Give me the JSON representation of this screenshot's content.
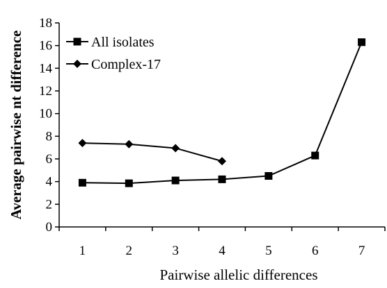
{
  "chart_data": {
    "type": "line",
    "title": "",
    "xlabel": "Pairwise allelic differences",
    "ylabel": "Average pairwise nt difference",
    "x": [
      1,
      2,
      3,
      4,
      5,
      6,
      7
    ],
    "xlim": [
      0.5,
      7.5
    ],
    "ylim": [
      0,
      18
    ],
    "yticks": [
      0,
      2,
      4,
      6,
      8,
      10,
      12,
      14,
      16,
      18
    ],
    "grid": false,
    "legend_position": "top-left",
    "series": [
      {
        "name": "All isolates",
        "marker": "square",
        "x": [
          1,
          2,
          3,
          4,
          5,
          6,
          7
        ],
        "values": [
          3.9,
          3.85,
          4.1,
          4.2,
          4.5,
          6.3,
          16.3
        ]
      },
      {
        "name": "Complex-17",
        "marker": "diamond",
        "x": [
          1,
          2,
          3,
          4
        ],
        "values": [
          7.4,
          7.3,
          6.95,
          5.8
        ]
      }
    ]
  }
}
